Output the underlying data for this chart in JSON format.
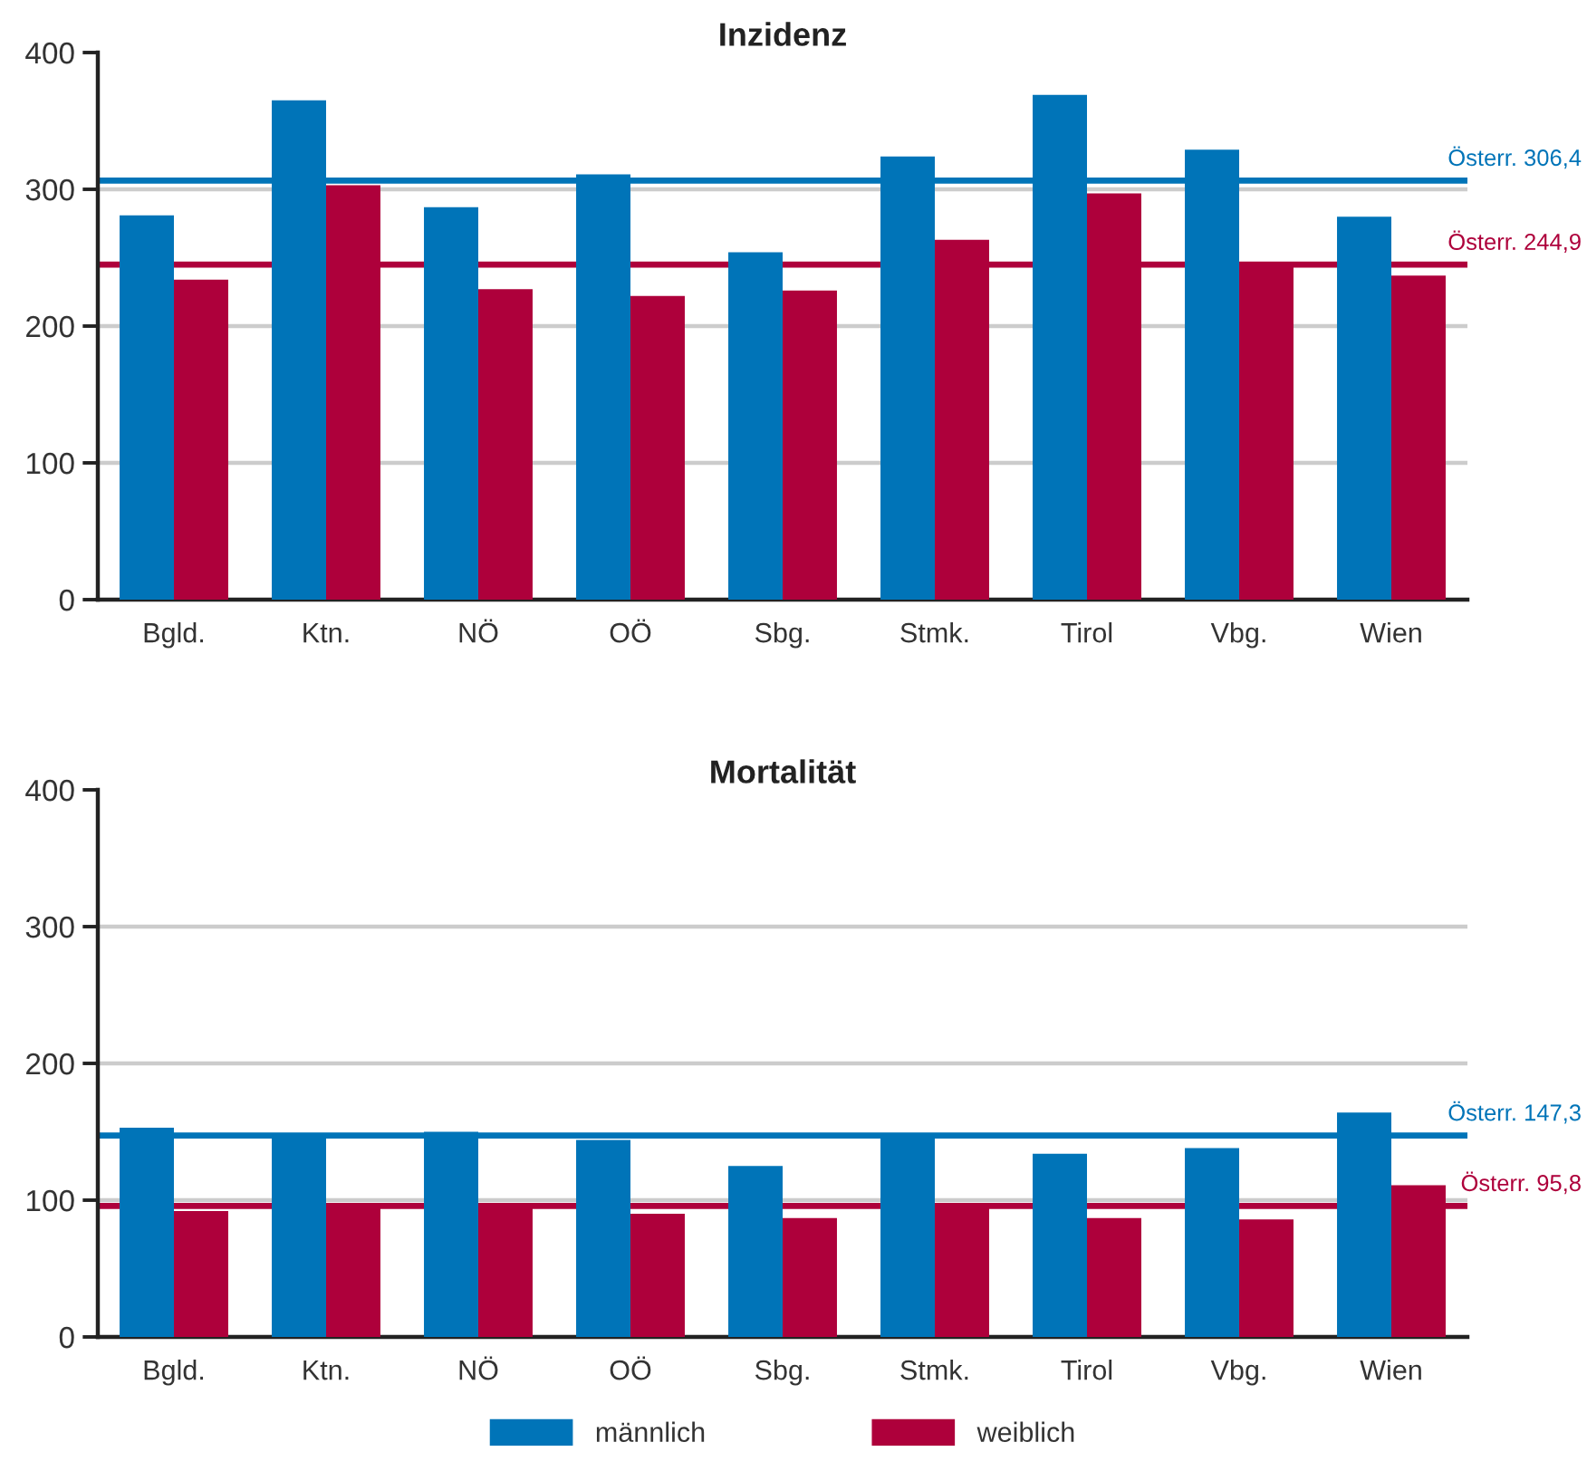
{
  "chart_data": [
    {
      "type": "bar",
      "title": "Inzidenz",
      "categories": [
        "Bgld.",
        "Ktn.",
        "NÖ",
        "OÖ",
        "Sbg.",
        "Stmk.",
        "Tirol",
        "Vbg.",
        "Wien"
      ],
      "series": [
        {
          "color": "#0074b8",
          "values": [
            281,
            365,
            287,
            311,
            254,
            324,
            369,
            329,
            280
          ]
        },
        {
          "color": "#ae003b",
          "values": [
            234,
            303,
            227,
            222,
            226,
            263,
            297,
            245,
            237
          ]
        }
      ],
      "ylim": [
        0,
        400
      ],
      "yticks": [
        0,
        100,
        200,
        300,
        400
      ],
      "grid": "y",
      "ref_lines": [
        {
          "axis": "y",
          "value": 306.4,
          "label": "Österr. 306,4",
          "color": "#0074b8"
        },
        {
          "axis": "y",
          "value": 244.9,
          "label": "Österr. 244,9",
          "color": "#ae003b"
        }
      ]
    },
    {
      "type": "bar",
      "title": "Mortalität",
      "categories": [
        "Bgld.",
        "Ktn.",
        "NÖ",
        "OÖ",
        "Sbg.",
        "Stmk.",
        "Tirol",
        "Vbg.",
        "Wien"
      ],
      "series": [
        {
          "name": "männlich",
          "color": "#0074b8",
          "values": [
            153,
            148,
            150,
            144,
            125,
            146,
            134,
            138,
            164
          ]
        },
        {
          "name": "weiblich",
          "color": "#ae003b",
          "values": [
            92,
            97,
            97,
            90,
            87,
            97,
            87,
            86,
            111
          ]
        }
      ],
      "ylim": [
        0,
        400
      ],
      "yticks": [
        0,
        100,
        200,
        300,
        400
      ],
      "grid": "y",
      "legend": "bottom",
      "ref_lines": [
        {
          "axis": "y",
          "value": 147.3,
          "label": "Österr. 147,3",
          "color": "#0074b8"
        },
        {
          "axis": "y",
          "value": 95.8,
          "label": "Österr. 95,8",
          "color": "#ae003b"
        }
      ]
    }
  ]
}
